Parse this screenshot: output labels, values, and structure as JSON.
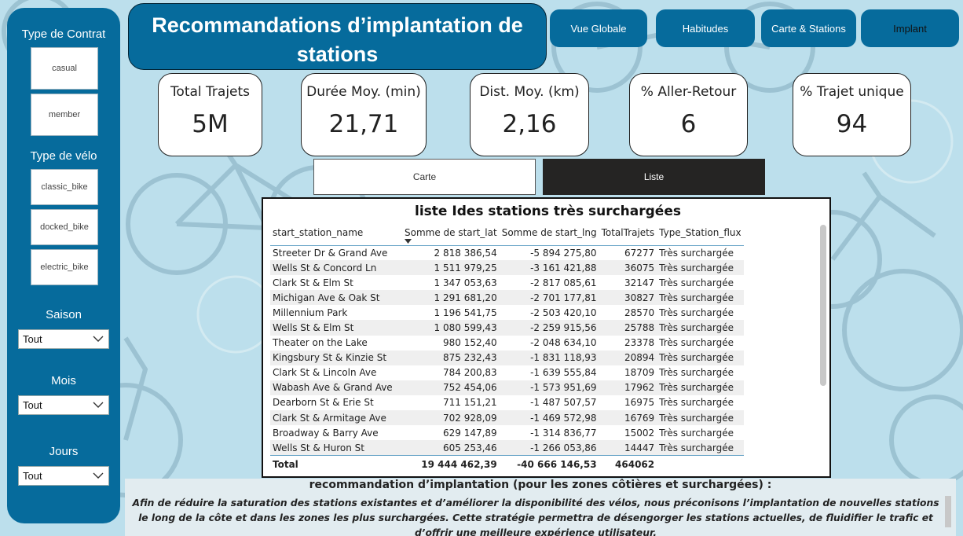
{
  "sidebar": {
    "contract_title": "Type de Contrat",
    "contract_options": [
      "casual",
      "member"
    ],
    "bike_title": "Type de vélo",
    "bike_options": [
      "classic_bike",
      "docked_bike",
      "electric_bike"
    ],
    "filters": [
      {
        "label": "Saison",
        "value": "Tout"
      },
      {
        "label": "Mois",
        "value": "Tout"
      },
      {
        "label": "Jours",
        "value": "Tout"
      }
    ]
  },
  "header": {
    "title": "Recommandations d’implantation de stations"
  },
  "nav": {
    "buttons": [
      "Vue Globale",
      "Habitudes",
      "Carte & Stations",
      "Implant"
    ]
  },
  "kpis": [
    {
      "label": "Total Trajets",
      "value": "5M"
    },
    {
      "label": "Durée Moy. (min)",
      "value": "21,71"
    },
    {
      "label": "Dist. Moy. (km)",
      "value": "2,16"
    },
    {
      "label": "% Aller-Retour",
      "value": "6"
    },
    {
      "label": "% Trajet unique",
      "value": "94"
    }
  ],
  "view_toggle": {
    "carte": "Carte",
    "liste": "Liste"
  },
  "table": {
    "title": "liste Ides stations très surchargées",
    "columns": [
      "start_station_name",
      "Somme de start_lat",
      "Somme de start_lng",
      "TotalTrajets",
      "Type_Station_flux"
    ],
    "rows": [
      [
        "Streeter Dr & Grand Ave",
        "2 818 386,54",
        "-5 894 275,80",
        "67277",
        "Très surchargée"
      ],
      [
        "Wells St & Concord Ln",
        "1 511 979,25",
        "-3 161 421,88",
        "36075",
        "Très surchargée"
      ],
      [
        "Clark St & Elm St",
        "1 347 053,63",
        "-2 817 085,61",
        "32147",
        "Très surchargée"
      ],
      [
        "Michigan Ave & Oak St",
        "1 291 681,20",
        "-2 701 177,81",
        "30827",
        "Très surchargée"
      ],
      [
        "Millennium Park",
        "1 196 541,75",
        "-2 503 420,10",
        "28570",
        "Très surchargée"
      ],
      [
        "Wells St & Elm St",
        "1 080 599,43",
        "-2 259 915,56",
        "25788",
        "Très surchargée"
      ],
      [
        "Theater on the Lake",
        "980 152,40",
        "-2 048 634,10",
        "23378",
        "Très surchargée"
      ],
      [
        "Kingsbury St & Kinzie St",
        "875 232,43",
        "-1 831 118,93",
        "20894",
        "Très surchargée"
      ],
      [
        "Clark St & Lincoln Ave",
        "784 200,83",
        "-1 639 555,84",
        "18709",
        "Très surchargée"
      ],
      [
        "Wabash Ave & Grand Ave",
        "752 454,06",
        "-1 573 951,69",
        "17962",
        "Très surchargée"
      ],
      [
        "Dearborn St & Erie St",
        "711 151,21",
        "-1 487 507,57",
        "16975",
        "Très surchargée"
      ],
      [
        "Clark St & Armitage Ave",
        "702 928,09",
        "-1 469 572,98",
        "16769",
        "Très surchargée"
      ],
      [
        "Broadway & Barry Ave",
        "629 147,89",
        "-1 314 836,77",
        "15002",
        "Très surchargée"
      ],
      [
        "Wells St & Huron St",
        "605 253,46",
        "-1 266 053,86",
        "14447",
        "Très surchargée"
      ]
    ],
    "total": [
      "Total",
      "19 444 462,39",
      "-40 666 146,53",
      "464062",
      ""
    ]
  },
  "recommendation": {
    "title": "recommandation d’implantation (pour les zones côtières et surchargées) :",
    "body": "Afin de réduire la saturation des stations existantes et d’améliorer la disponibilité des vélos, nous préconisons l’implantation de nouvelles stations le long de la côte et dans les zones les plus surchargées. Cette stratégie permettra de désengorger les stations actuelles, de fluidifier le trafic et d’offrir une meilleure expérience utilisateur."
  },
  "colors": {
    "primary": "#066b9c",
    "background": "#bcdfec",
    "active_toggle": "#252423"
  }
}
